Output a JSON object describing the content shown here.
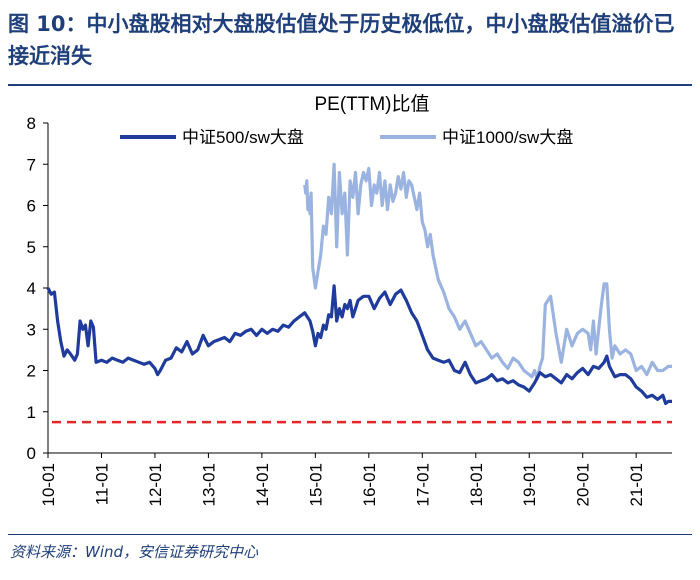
{
  "figure": {
    "title": "图 10：中小盘股相对大盘股估值处于历史极低位，中小盘股估值溢价已接近消失",
    "source": "资料来源：Wind，安信证券研究中心"
  },
  "colors": {
    "title": "#1f3f7a",
    "series1": "#1f3b9c",
    "series2": "#9bb3e0",
    "reference": "#e8262a"
  },
  "chart_data": {
    "type": "line",
    "title": "PE(TTM)比值",
    "xlabel": "",
    "ylabel": "",
    "ylim": [
      0,
      8
    ],
    "xlim": [
      2010.0,
      2021.67
    ],
    "yticks": [
      0,
      1,
      2,
      3,
      4,
      5,
      6,
      7,
      8
    ],
    "xticks": [
      {
        "label": "10-01",
        "value": 2010.0
      },
      {
        "label": "11-01",
        "value": 2011.0
      },
      {
        "label": "12-01",
        "value": 2012.0
      },
      {
        "label": "13-01",
        "value": 2013.0
      },
      {
        "label": "14-01",
        "value": 2014.0
      },
      {
        "label": "15-01",
        "value": 2015.0
      },
      {
        "label": "16-01",
        "value": 2016.0
      },
      {
        "label": "17-01",
        "value": 2017.0
      },
      {
        "label": "18-01",
        "value": 2018.0
      },
      {
        "label": "19-01",
        "value": 2019.0
      },
      {
        "label": "20-01",
        "value": 2020.0
      },
      {
        "label": "21-01",
        "value": 2021.0
      }
    ],
    "legend_position": "top",
    "reference_line": {
      "y": 0.75,
      "style": "dashed"
    },
    "series": [
      {
        "name": "中证500/sw大盘",
        "x": [
          2010.0,
          2010.06,
          2010.12,
          2010.18,
          2010.24,
          2010.3,
          2010.36,
          2010.42,
          2010.5,
          2010.55,
          2010.6,
          2010.65,
          2010.7,
          2010.75,
          2010.8,
          2010.85,
          2010.9,
          2011.0,
          2011.1,
          2011.2,
          2011.3,
          2011.4,
          2011.5,
          2011.6,
          2011.7,
          2011.8,
          2011.9,
          2012.0,
          2012.05,
          2012.1,
          2012.2,
          2012.3,
          2012.4,
          2012.5,
          2012.6,
          2012.7,
          2012.8,
          2012.9,
          2013.0,
          2013.1,
          2013.2,
          2013.3,
          2013.4,
          2013.5,
          2013.6,
          2013.7,
          2013.8,
          2013.9,
          2014.0,
          2014.1,
          2014.2,
          2014.3,
          2014.4,
          2014.5,
          2014.6,
          2014.7,
          2014.8,
          2014.85,
          2014.9,
          2014.95,
          2015.0,
          2015.05,
          2015.1,
          2015.15,
          2015.2,
          2015.25,
          2015.3,
          2015.35,
          2015.4,
          2015.45,
          2015.5,
          2015.55,
          2015.6,
          2015.65,
          2015.7,
          2015.75,
          2015.8,
          2015.9,
          2016.0,
          2016.1,
          2016.2,
          2016.3,
          2016.4,
          2016.5,
          2016.6,
          2016.7,
          2016.8,
          2016.9,
          2017.0,
          2017.1,
          2017.2,
          2017.3,
          2017.4,
          2017.5,
          2017.6,
          2017.7,
          2017.8,
          2017.9,
          2018.0,
          2018.1,
          2018.2,
          2018.3,
          2018.4,
          2018.5,
          2018.6,
          2018.7,
          2018.8,
          2018.9,
          2019.0,
          2019.1,
          2019.2,
          2019.3,
          2019.4,
          2019.5,
          2019.6,
          2019.7,
          2019.8,
          2019.9,
          2020.0,
          2020.1,
          2020.2,
          2020.3,
          2020.4,
          2020.45,
          2020.5,
          2020.6,
          2020.7,
          2020.8,
          2020.9,
          2021.0,
          2021.1,
          2021.2,
          2021.3,
          2021.4,
          2021.5,
          2021.55,
          2021.6,
          2021.67
        ],
        "values": [
          4.0,
          3.85,
          3.9,
          3.2,
          2.7,
          2.35,
          2.5,
          2.4,
          2.25,
          2.4,
          3.2,
          3.0,
          3.1,
          2.6,
          3.2,
          3.05,
          2.2,
          2.25,
          2.2,
          2.3,
          2.25,
          2.2,
          2.3,
          2.25,
          2.2,
          2.15,
          2.2,
          2.05,
          1.9,
          2.0,
          2.25,
          2.3,
          2.55,
          2.45,
          2.7,
          2.4,
          2.5,
          2.85,
          2.6,
          2.7,
          2.75,
          2.8,
          2.7,
          2.9,
          2.85,
          2.95,
          3.0,
          2.85,
          3.0,
          2.9,
          3.0,
          2.95,
          3.1,
          3.05,
          3.2,
          3.3,
          3.4,
          3.3,
          3.2,
          2.95,
          2.6,
          2.9,
          2.8,
          3.1,
          3.0,
          3.35,
          3.3,
          4.05,
          3.2,
          3.5,
          3.3,
          3.6,
          3.5,
          3.7,
          3.3,
          3.5,
          3.7,
          3.8,
          3.8,
          3.5,
          3.75,
          3.9,
          3.6,
          3.85,
          3.95,
          3.7,
          3.4,
          3.2,
          2.85,
          2.5,
          2.3,
          2.25,
          2.2,
          2.25,
          2.0,
          1.95,
          2.2,
          1.9,
          1.7,
          1.75,
          1.8,
          1.9,
          1.75,
          1.8,
          1.7,
          1.75,
          1.65,
          1.6,
          1.5,
          1.7,
          1.95,
          1.85,
          1.9,
          1.8,
          1.7,
          1.9,
          1.8,
          1.95,
          2.05,
          1.9,
          2.1,
          2.05,
          2.2,
          2.35,
          2.1,
          1.85,
          1.9,
          1.9,
          1.8,
          1.6,
          1.5,
          1.35,
          1.4,
          1.3,
          1.4,
          1.2,
          1.25,
          1.25
        ]
      },
      {
        "name": "中证1000/sw大盘",
        "x": [
          2014.8,
          2014.82,
          2014.84,
          2014.86,
          2014.88,
          2014.9,
          2014.92,
          2014.95,
          2015.0,
          2015.05,
          2015.1,
          2015.15,
          2015.2,
          2015.25,
          2015.3,
          2015.35,
          2015.4,
          2015.45,
          2015.5,
          2015.55,
          2015.6,
          2015.65,
          2015.7,
          2015.75,
          2015.8,
          2015.85,
          2015.9,
          2015.95,
          2016.0,
          2016.05,
          2016.1,
          2016.15,
          2016.2,
          2016.25,
          2016.3,
          2016.35,
          2016.4,
          2016.45,
          2016.5,
          2016.55,
          2016.6,
          2016.65,
          2016.7,
          2016.75,
          2016.8,
          2016.85,
          2016.9,
          2016.95,
          2017.0,
          2017.05,
          2017.1,
          2017.15,
          2017.2,
          2017.3,
          2017.4,
          2017.5,
          2017.6,
          2017.7,
          2017.8,
          2017.9,
          2018.0,
          2018.1,
          2018.2,
          2018.3,
          2018.4,
          2018.5,
          2018.6,
          2018.7,
          2018.8,
          2018.9,
          2019.0,
          2019.05,
          2019.1,
          2019.15,
          2019.2,
          2019.25,
          2019.3,
          2019.4,
          2019.5,
          2019.6,
          2019.7,
          2019.8,
          2019.9,
          2020.0,
          2020.1,
          2020.15,
          2020.2,
          2020.25,
          2020.3,
          2020.35,
          2020.4,
          2020.45,
          2020.5,
          2020.55,
          2020.6,
          2020.7,
          2020.8,
          2020.9,
          2021.0,
          2021.1,
          2021.2,
          2021.3,
          2021.4,
          2021.5,
          2021.6,
          2021.67
        ],
        "values": [
          6.5,
          6.3,
          6.6,
          5.9,
          6.2,
          5.8,
          6.3,
          4.5,
          4.0,
          4.4,
          4.8,
          5.5,
          5.3,
          6.2,
          5.8,
          7.0,
          5.0,
          6.8,
          5.8,
          6.3,
          4.8,
          6.6,
          6.2,
          6.8,
          5.8,
          6.5,
          6.8,
          6.6,
          6.9,
          6.0,
          6.5,
          6.3,
          6.8,
          6.0,
          6.6,
          5.9,
          6.5,
          6.1,
          6.3,
          6.7,
          6.4,
          6.8,
          6.2,
          6.6,
          6.5,
          6.2,
          5.9,
          6.3,
          5.6,
          5.4,
          5.0,
          5.3,
          4.8,
          4.2,
          3.9,
          3.5,
          3.3,
          3.0,
          3.2,
          2.9,
          2.6,
          2.7,
          2.5,
          2.3,
          2.4,
          2.2,
          2.05,
          2.3,
          2.2,
          2.0,
          1.9,
          1.85,
          2.0,
          1.8,
          2.1,
          2.3,
          3.6,
          3.8,
          2.9,
          2.2,
          3.0,
          2.6,
          2.9,
          3.0,
          2.9,
          2.5,
          3.2,
          2.4,
          3.0,
          3.6,
          4.1,
          4.1,
          3.0,
          2.3,
          2.6,
          2.4,
          2.5,
          2.4,
          2.0,
          2.1,
          1.9,
          2.2,
          2.0,
          2.0,
          2.1,
          2.1
        ]
      }
    ]
  }
}
